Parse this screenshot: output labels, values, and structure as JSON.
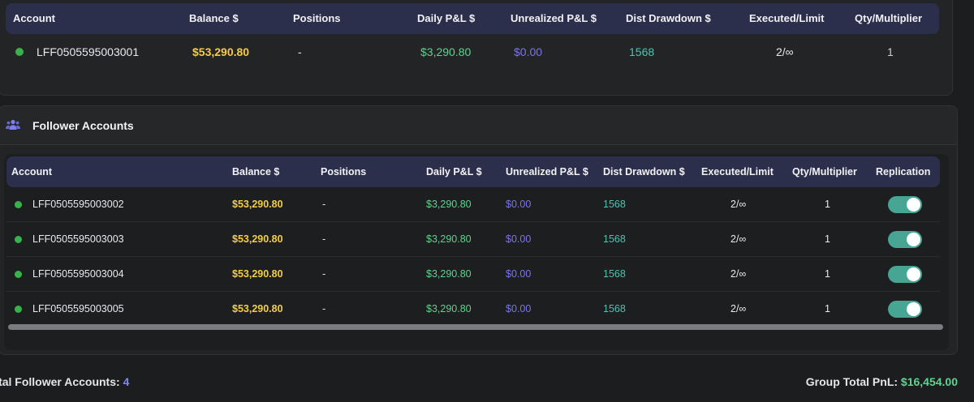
{
  "columns": {
    "account": "Account",
    "balance": "Balance $",
    "positions": "Positions",
    "daily_pnl": "Daily P&L $",
    "unrealized_pnl": "Unrealized P&L $",
    "dist_drawdown": "Dist Drawdown $",
    "executed_limit": "Executed/Limit",
    "qty_multiplier": "Qty/Multiplier",
    "replication": "Replication"
  },
  "lead": {
    "account": "LFF0505595003001",
    "balance": "$53,290.80",
    "positions": "-",
    "daily_pnl": "$3,290.80",
    "unrealized_pnl": "$0.00",
    "dist_drawdown": "1568",
    "executed_limit": "2/∞",
    "qty_multiplier": "1",
    "status_color": "#38b24a"
  },
  "follower": {
    "title": "Follower Accounts",
    "rows": [
      {
        "account": "LFF0505595003002",
        "balance": "$53,290.80",
        "positions": "-",
        "daily_pnl": "$3,290.80",
        "unrealized_pnl": "$0.00",
        "dist_drawdown": "1568",
        "executed_limit": "2/∞",
        "qty_multiplier": "1",
        "replication": true
      },
      {
        "account": "LFF0505595003003",
        "balance": "$53,290.80",
        "positions": "-",
        "daily_pnl": "$3,290.80",
        "unrealized_pnl": "$0.00",
        "dist_drawdown": "1568",
        "executed_limit": "2/∞",
        "qty_multiplier": "1",
        "replication": true
      },
      {
        "account": "LFF0505595003004",
        "balance": "$53,290.80",
        "positions": "-",
        "daily_pnl": "$3,290.80",
        "unrealized_pnl": "$0.00",
        "dist_drawdown": "1568",
        "executed_limit": "2/∞",
        "qty_multiplier": "1",
        "replication": true
      },
      {
        "account": "LFF0505595003005",
        "balance": "$53,290.80",
        "positions": "-",
        "daily_pnl": "$3,290.80",
        "unrealized_pnl": "$0.00",
        "dist_drawdown": "1568",
        "executed_limit": "2/∞",
        "qty_multiplier": "1",
        "replication": true
      }
    ]
  },
  "footer": {
    "total_label": "Total Follower Accounts:",
    "total_count": "4",
    "group_pnl_label": "Group Total PnL:",
    "group_pnl_value": "$16,454.00"
  },
  "colors": {
    "balance": "#f3cd47",
    "daily_pnl": "#5fd28f",
    "unrealized_pnl": "#7c74ea",
    "dist_drawdown": "#4fc3b0",
    "header_bg": "#2c2f4c",
    "toggle_on": "#46a593",
    "status_active": "#38b24a"
  },
  "icons": {
    "follower_title": "users-icon",
    "status": "status-dot-icon"
  }
}
